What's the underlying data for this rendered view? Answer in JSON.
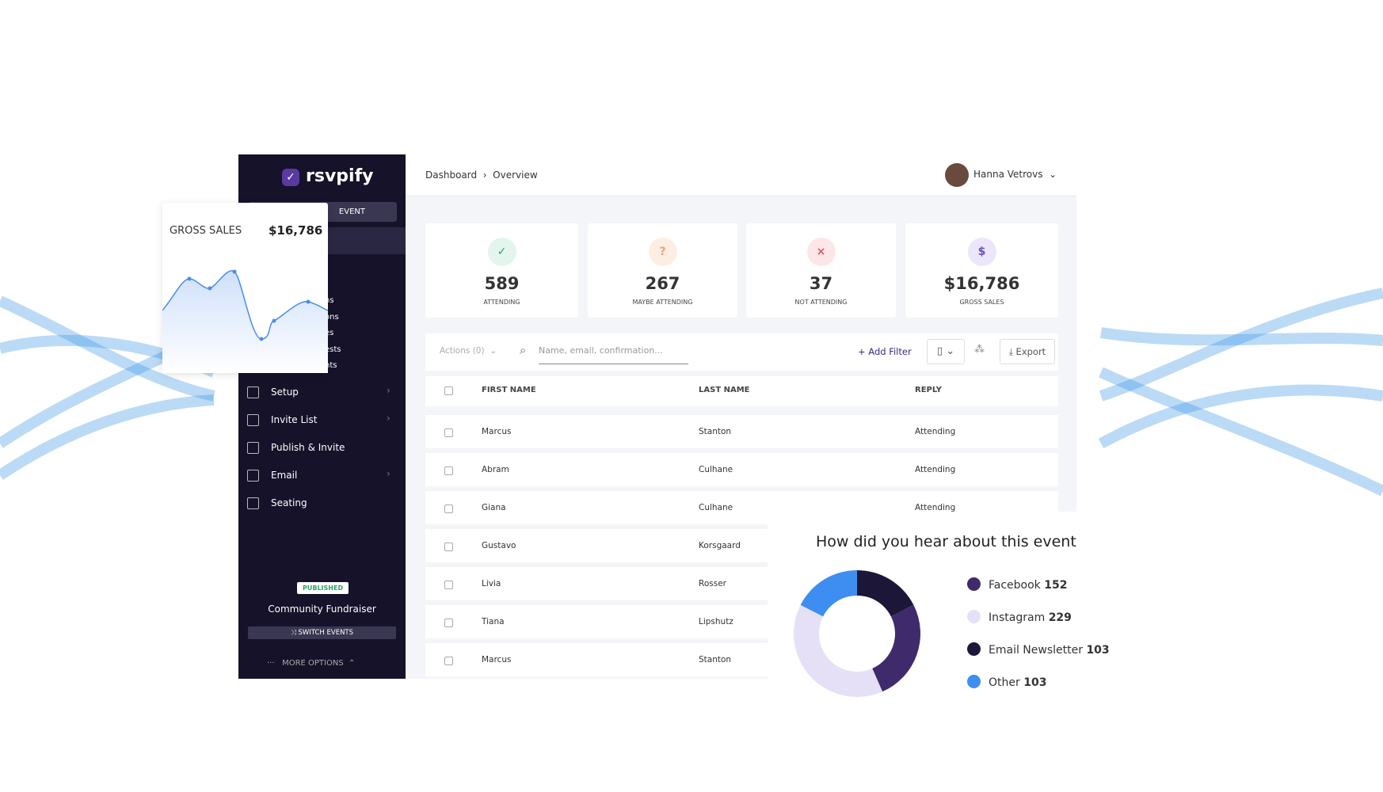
{
  "brand": "rsvpify",
  "sidebar": {
    "event_button": "EVENT",
    "fragments": [
      "ns",
      "ons",
      "es",
      "ests",
      "nts"
    ],
    "menu": [
      "Setup",
      "Invite List",
      "Publish & Invite",
      "Email",
      "Seating"
    ],
    "status": "PUBLISHED",
    "event_name": "Community Fundraiser",
    "switch": "SWITCH EVENTS",
    "more": "MORE OPTIONS"
  },
  "header": {
    "breadcrumb": [
      "Dashboard",
      "Overview"
    ],
    "user": "Hanna Vetrovs"
  },
  "stats": [
    {
      "value": "589",
      "label": "ATTENDING"
    },
    {
      "value": "267",
      "label": "MAYBE ATTENDING"
    },
    {
      "value": "37",
      "label": "NOT ATTENDING"
    },
    {
      "value": "$16,786",
      "label": "GROSS SALES"
    }
  ],
  "toolbar": {
    "actions": "Actions (0)",
    "search": "Name, email, confirmation...",
    "filter": "+ Add Filter",
    "export": "Export"
  },
  "table": {
    "columns": [
      "FIRST NAME",
      "LAST NAME",
      "REPLY"
    ],
    "rows": [
      [
        "Marcus",
        "Stanton",
        "Attending"
      ],
      [
        "Abram",
        "Culhane",
        "Attending"
      ],
      [
        "Giana",
        "Culhane",
        "Attending"
      ],
      [
        "Gustavo",
        "Korsgaard"
      ],
      [
        "Livia",
        "Rosser"
      ],
      [
        "Tiana",
        "Lipshutz"
      ],
      [
        "Marcus",
        "Stanton"
      ]
    ]
  },
  "sales_card": {
    "label": "GROSS SALES",
    "value": "$16,786"
  },
  "chart_data": {
    "type": "donut",
    "title": "How did you hear about this event",
    "series": [
      {
        "name": "Facebook",
        "color": "#3f2a6b",
        "value": 152
      },
      {
        "name": "Instagram",
        "color": "#e6e0f7",
        "value": 229
      },
      {
        "name": "Email Newsletter",
        "color": "#1c1638",
        "value": 103
      },
      {
        "name": "Other",
        "color": "#3d8ef0",
        "value": 103
      }
    ]
  }
}
